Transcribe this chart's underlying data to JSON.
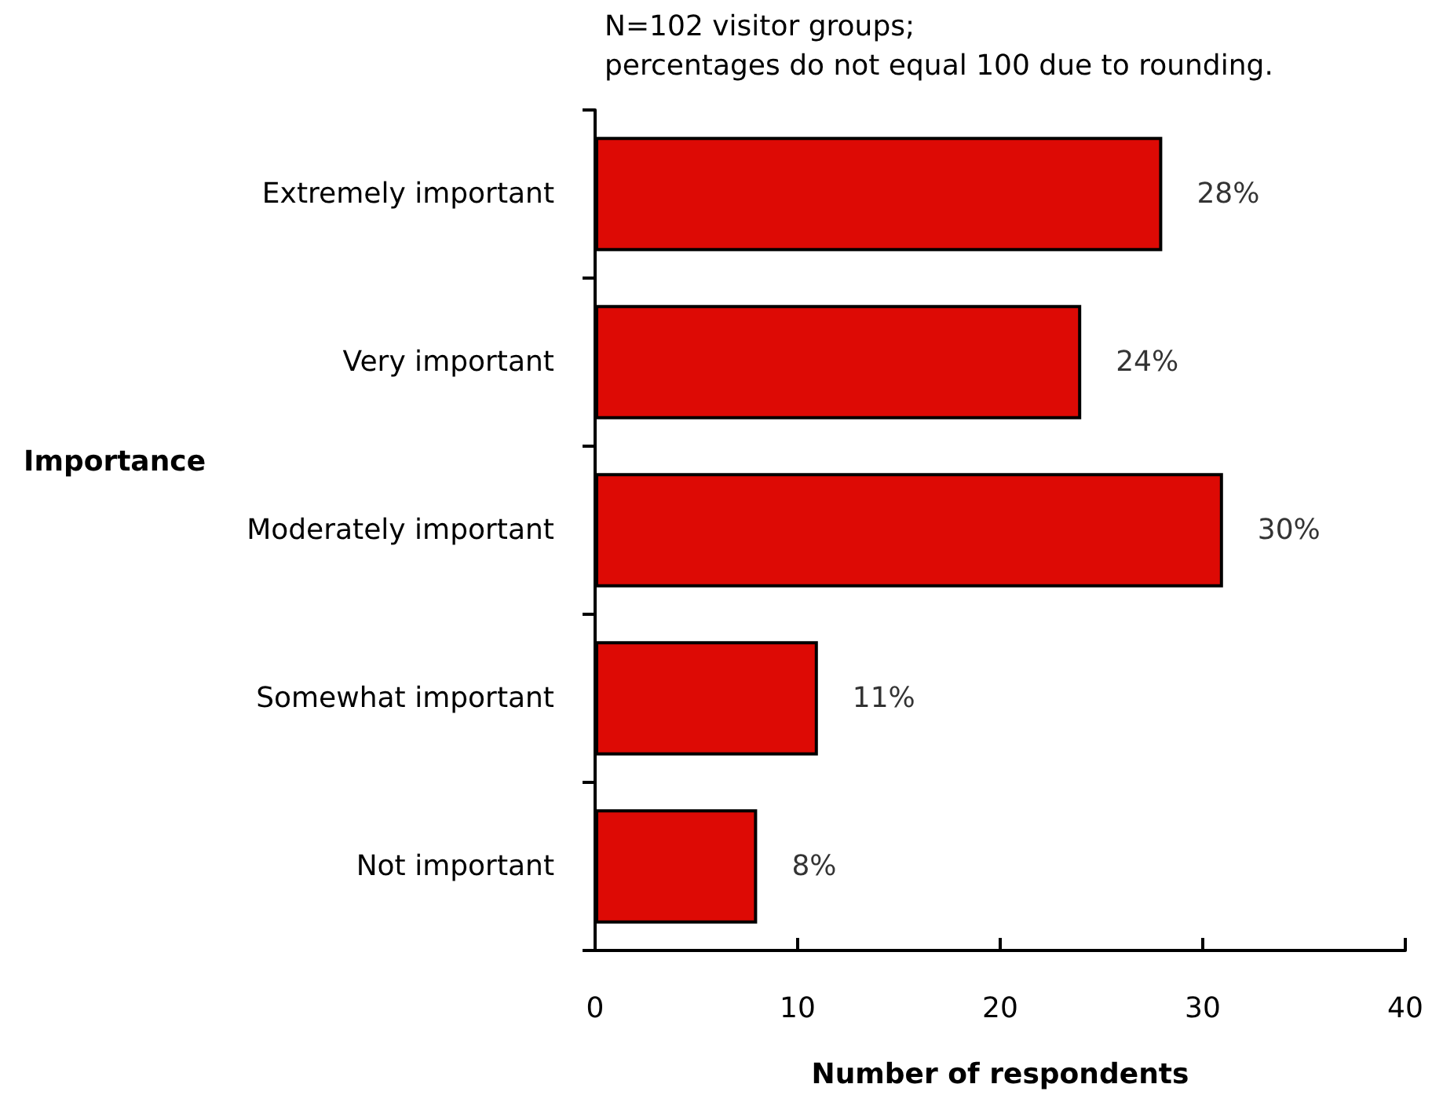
{
  "chart_data": {
    "type": "bar",
    "orientation": "horizontal",
    "categories": [
      "Extremely important",
      "Very important",
      "Moderately important",
      "Somewhat important",
      "Not important"
    ],
    "values": [
      28,
      24,
      31,
      11,
      8
    ],
    "color": "#dd0a05",
    "xlim": [
      0,
      40
    ],
    "xticks": [
      0,
      10,
      20,
      30,
      40
    ],
    "xlabel": "Number of respondents",
    "ylabel": "Importance",
    "annotations": [
      "N=102 visitor groups;",
      "percentages do not equal 100 due to rounding.",
      {
        "text": "28%",
        "x": 28,
        "y": "Extremely important"
      },
      {
        "text": "24%",
        "x": 24,
        "y": "Very important"
      },
      {
        "text": "30%",
        "x": 31,
        "y": "Moderately important"
      },
      {
        "text": "11%",
        "x": 11,
        "y": "Somewhat important"
      },
      {
        "text": "8%",
        "x": 8,
        "y": "Not important"
      }
    ],
    "grid": false
  }
}
